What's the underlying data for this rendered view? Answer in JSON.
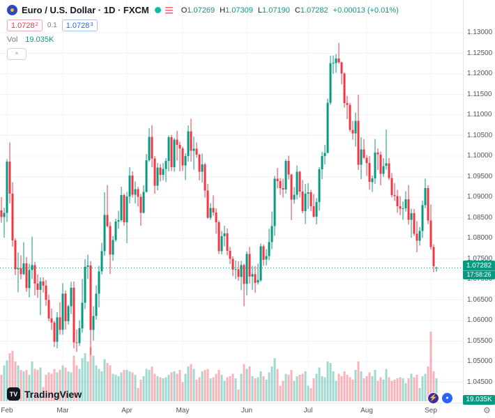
{
  "header": {
    "title": "Euro / U.S. Dollar · 1D · FXCM",
    "ohlc": {
      "o_label": "O",
      "o": "1.07269",
      "h_label": "H",
      "h": "1.07309",
      "l_label": "L",
      "l": "1.07190",
      "c_label": "C",
      "c": "1.07282",
      "change": "+0.00013 (+0.01%)"
    },
    "bid_main": "1.0728",
    "bid_sup": "2",
    "spread": "0.1",
    "ask_main": "1.0728",
    "ask_sup": "3",
    "vol_label": "Vol",
    "vol_value": "19.035K"
  },
  "icons": {
    "collapse_glyph": "^",
    "gear_glyph": "⚙",
    "lightning_glyph": "⚡",
    "chat_glyph": "●",
    "logo_glyph": "TV"
  },
  "price_axis": {
    "labels": [
      "1.13000",
      "1.12500",
      "1.12000",
      "1.11500",
      "1.11000",
      "1.10500",
      "1.10000",
      "1.09500",
      "1.09000",
      "1.08500",
      "1.08000",
      "1.07500",
      "1.07000",
      "1.06500",
      "1.06000",
      "1.05500",
      "1.05000",
      "1.04500"
    ]
  },
  "last_price_tag": {
    "price": "1.07282",
    "countdown": "17:58:26"
  },
  "volume_tag": "19.035K",
  "footer": {
    "brand": "TradingView"
  },
  "colors": {
    "up": "#089981",
    "down": "#f23645",
    "vol_up": "rgba(8,153,129,0.38)",
    "vol_down": "rgba(242,54,69,0.38)",
    "grid": "#f0f3fa",
    "axis_text": "#50535e",
    "accent_blue": "#2962ff"
  },
  "chart_data": {
    "type": "candlestick",
    "title": "Euro / U.S. Dollar",
    "symbol": "EURUSD",
    "interval": "1D",
    "exchange": "FXCM",
    "legend_position": "top-left",
    "grid": true,
    "price_scale": {
      "min": 1.04,
      "max": 1.138,
      "tick": 0.005
    },
    "last": {
      "open": 1.07269,
      "high": 1.07309,
      "low": 1.0719,
      "close": 1.07282,
      "change": 0.00013,
      "change_pct": 0.01,
      "volume_k": 19.035
    },
    "right_gap_bars": 9,
    "columns": [
      "open",
      "high",
      "low",
      "close",
      "volume_k"
    ],
    "months": [
      {
        "label": "Feb",
        "bar": 2
      },
      {
        "label": "Mar",
        "bar": 22
      },
      {
        "label": "Apr",
        "bar": 45
      },
      {
        "label": "May",
        "bar": 65
      },
      {
        "label": "Jun",
        "bar": 88
      },
      {
        "label": "Jul",
        "bar": 110
      },
      {
        "label": "Aug",
        "bar": 131
      },
      {
        "label": "Sep",
        "bar": 154
      }
    ],
    "bars": [
      [
        1.0868,
        1.09,
        1.0838,
        1.0852,
        22
      ],
      [
        1.0852,
        1.0875,
        1.0802,
        1.0862,
        30
      ],
      [
        1.0862,
        1.0993,
        1.084,
        1.0987,
        34
      ],
      [
        1.0987,
        1.1033,
        1.0885,
        1.0909,
        40
      ],
      [
        1.0909,
        1.0937,
        1.078,
        1.0795,
        42
      ],
      [
        1.0795,
        1.08,
        1.071,
        1.0725,
        33
      ],
      [
        1.0725,
        1.0765,
        1.0669,
        1.0727,
        30
      ],
      [
        1.0727,
        1.0759,
        1.07,
        1.0713,
        26
      ],
      [
        1.0713,
        1.0791,
        1.071,
        1.0739,
        25
      ],
      [
        1.0739,
        1.0754,
        1.067,
        1.0679,
        26
      ],
      [
        1.0679,
        1.0738,
        1.0656,
        1.0723,
        22
      ],
      [
        1.0723,
        1.0804,
        1.0701,
        1.0735,
        33
      ],
      [
        1.0735,
        1.0743,
        1.0661,
        1.069,
        27
      ],
      [
        1.069,
        1.0712,
        1.0655,
        1.0675,
        26
      ],
      [
        1.0675,
        1.0705,
        1.0613,
        1.0695,
        28
      ],
      [
        1.0695,
        1.0705,
        1.0668,
        1.0685,
        12
      ],
      [
        1.0685,
        1.0698,
        1.0636,
        1.065,
        22
      ],
      [
        1.065,
        1.0663,
        1.0598,
        1.0605,
        24
      ],
      [
        1.0605,
        1.0629,
        1.0577,
        1.0595,
        23
      ],
      [
        1.0595,
        1.0599,
        1.0536,
        1.0548,
        27
      ],
      [
        1.0548,
        1.062,
        1.0532,
        1.0608,
        24
      ],
      [
        1.0608,
        1.0644,
        1.0565,
        1.0577,
        26
      ],
      [
        1.0577,
        1.0691,
        1.0565,
        1.0665,
        30
      ],
      [
        1.0665,
        1.0673,
        1.0578,
        1.0598,
        28
      ],
      [
        1.0598,
        1.0638,
        1.059,
        1.0635,
        25
      ],
      [
        1.0635,
        1.0694,
        1.0615,
        1.068,
        24
      ],
      [
        1.068,
        1.0695,
        1.0532,
        1.0547,
        38
      ],
      [
        1.0547,
        1.0578,
        1.0524,
        1.0545,
        30
      ],
      [
        1.0545,
        1.0601,
        1.0538,
        1.0581,
        27
      ],
      [
        1.0581,
        1.0701,
        1.057,
        1.0643,
        36
      ],
      [
        1.0643,
        1.0749,
        1.0628,
        1.0731,
        40
      ],
      [
        1.0731,
        1.076,
        1.0701,
        1.0734,
        33
      ],
      [
        1.0734,
        1.0744,
        1.0516,
        1.0577,
        45
      ],
      [
        1.0577,
        1.0635,
        1.0551,
        1.0611,
        38
      ],
      [
        1.0611,
        1.0686,
        1.0602,
        1.0665,
        30
      ],
      [
        1.0665,
        1.0733,
        1.0632,
        1.072,
        27
      ],
      [
        1.072,
        1.0789,
        1.0712,
        1.0769,
        25
      ],
      [
        1.0769,
        1.0912,
        1.0758,
        1.0857,
        35
      ],
      [
        1.0857,
        1.093,
        1.0826,
        1.083,
        32
      ],
      [
        1.083,
        1.084,
        1.0714,
        1.076,
        30
      ],
      [
        1.076,
        1.0805,
        1.0745,
        1.0796,
        23
      ],
      [
        1.0796,
        1.0848,
        1.0792,
        1.0841,
        22
      ],
      [
        1.0841,
        1.0867,
        1.0823,
        1.0844,
        21
      ],
      [
        1.0844,
        1.0926,
        1.084,
        1.0905,
        24
      ],
      [
        1.0905,
        1.0909,
        1.0831,
        1.0839,
        26
      ],
      [
        1.0839,
        1.0913,
        1.0788,
        1.0902,
        26
      ],
      [
        1.0902,
        1.0973,
        1.0885,
        1.0953,
        25
      ],
      [
        1.0953,
        1.0963,
        1.0899,
        1.0906,
        24
      ],
      [
        1.0906,
        1.0938,
        1.0885,
        1.092,
        22
      ],
      [
        1.092,
        1.0926,
        1.0877,
        1.0901,
        11
      ],
      [
        1.0901,
        1.0908,
        1.0831,
        1.0862,
        18
      ],
      [
        1.0862,
        1.0929,
        1.086,
        1.0913,
        21
      ],
      [
        1.0913,
        1.1005,
        1.0911,
        1.099,
        27
      ],
      [
        1.099,
        1.1068,
        1.0987,
        1.1047,
        26
      ],
      [
        1.1047,
        1.1076,
        1.0973,
        1.0994,
        29
      ],
      [
        1.0994,
        1.1,
        1.0909,
        1.0928,
        23
      ],
      [
        1.0928,
        1.0983,
        1.0917,
        1.0972,
        21
      ],
      [
        1.0972,
        1.0981,
        1.0938,
        1.0954,
        20
      ],
      [
        1.0954,
        1.0983,
        1.0941,
        1.0969,
        19
      ],
      [
        1.0969,
        1.0995,
        1.0937,
        1.0988,
        20
      ],
      [
        1.0988,
        1.105,
        1.0963,
        1.1046,
        22
      ],
      [
        1.1046,
        1.1052,
        1.0964,
        1.0973,
        24
      ],
      [
        1.0973,
        1.1044,
        1.0962,
        1.104,
        25
      ],
      [
        1.104,
        1.1062,
        1.0989,
        1.1027,
        23
      ],
      [
        1.1027,
        1.1035,
        1.0963,
        1.1019,
        26
      ],
      [
        1.1019,
        1.1023,
        1.0964,
        1.0977,
        16
      ],
      [
        1.0977,
        1.1007,
        1.0942,
        1.1,
        23
      ],
      [
        1.1,
        1.1075,
        1.0987,
        1.106,
        29
      ],
      [
        1.106,
        1.1091,
        1.0987,
        1.1013,
        31
      ],
      [
        1.1013,
        1.1048,
        1.0967,
        1.1018,
        27
      ],
      [
        1.1018,
        1.1033,
        1.0996,
        1.1004,
        18
      ],
      [
        1.1004,
        1.1006,
        1.0941,
        1.0962,
        20
      ],
      [
        1.0962,
        1.1006,
        1.0936,
        1.098,
        25
      ],
      [
        1.098,
        1.0984,
        1.0899,
        1.0916,
        26
      ],
      [
        1.0916,
        1.0932,
        1.0848,
        1.085,
        27
      ],
      [
        1.085,
        1.0886,
        1.0845,
        1.0874,
        19
      ],
      [
        1.0874,
        1.0904,
        1.0855,
        1.0863,
        20
      ],
      [
        1.0863,
        1.0873,
        1.0811,
        1.0839,
        23
      ],
      [
        1.0839,
        1.0843,
        1.0762,
        1.0769,
        26
      ],
      [
        1.0769,
        1.0818,
        1.076,
        1.0805,
        22
      ],
      [
        1.0805,
        1.0831,
        1.0781,
        1.0812,
        17
      ],
      [
        1.0812,
        1.0824,
        1.0759,
        1.077,
        20
      ],
      [
        1.077,
        1.0779,
        1.0737,
        1.075,
        21
      ],
      [
        1.075,
        1.0756,
        1.0708,
        1.0724,
        23
      ],
      [
        1.0724,
        1.0746,
        1.0701,
        1.0725,
        19
      ],
      [
        1.0725,
        1.0744,
        1.0697,
        1.0706,
        10
      ],
      [
        1.0706,
        1.0745,
        1.0674,
        1.0735,
        23
      ],
      [
        1.0735,
        1.0738,
        1.0635,
        1.0689,
        31
      ],
      [
        1.0689,
        1.0768,
        1.0661,
        1.0762,
        27
      ],
      [
        1.0762,
        1.0779,
        1.069,
        1.0707,
        29
      ],
      [
        1.0707,
        1.0733,
        1.0675,
        1.0713,
        21
      ],
      [
        1.0713,
        1.0732,
        1.0667,
        1.0692,
        19
      ],
      [
        1.0692,
        1.0738,
        1.0687,
        1.0698,
        20
      ],
      [
        1.0698,
        1.0787,
        1.0694,
        1.0781,
        25
      ],
      [
        1.0781,
        1.0785,
        1.0733,
        1.0748,
        21
      ],
      [
        1.0748,
        1.0774,
        1.0734,
        1.0757,
        18
      ],
      [
        1.0757,
        1.0823,
        1.0747,
        1.0791,
        24
      ],
      [
        1.0791,
        1.0865,
        1.0774,
        1.083,
        29
      ],
      [
        1.083,
        1.0952,
        1.0806,
        1.0945,
        36
      ],
      [
        1.0945,
        1.0971,
        1.0921,
        1.0939,
        27
      ],
      [
        1.0939,
        1.0947,
        1.0906,
        1.0922,
        13
      ],
      [
        1.0922,
        1.0945,
        1.0899,
        1.0919,
        17
      ],
      [
        1.0919,
        1.0993,
        1.0909,
        1.0988,
        23
      ],
      [
        1.0988,
        1.1001,
        1.0943,
        1.0955,
        22
      ],
      [
        1.0955,
        1.0957,
        1.0844,
        1.0894,
        26
      ],
      [
        1.0894,
        1.0925,
        1.0884,
        1.0906,
        17
      ],
      [
        1.0906,
        1.0977,
        1.0895,
        1.0962,
        21
      ],
      [
        1.0962,
        1.0965,
        1.0899,
        1.0914,
        22
      ],
      [
        1.0914,
        1.0942,
        1.0861,
        1.0866,
        23
      ],
      [
        1.0866,
        1.0932,
        1.0835,
        1.0909,
        25
      ],
      [
        1.0909,
        1.0934,
        1.0871,
        1.0912,
        13
      ],
      [
        1.0912,
        1.0918,
        1.0866,
        1.0878,
        11
      ],
      [
        1.0878,
        1.0908,
        1.085,
        1.0853,
        19
      ],
      [
        1.0853,
        1.0898,
        1.0834,
        1.0888,
        23
      ],
      [
        1.0888,
        1.0973,
        1.0867,
        1.0968,
        28
      ],
      [
        1.0968,
        1.101,
        1.0944,
        1.1,
        21
      ],
      [
        1.1,
        1.1027,
        1.098,
        1.1008,
        20
      ],
      [
        1.1008,
        1.114,
        1.1007,
        1.113,
        33
      ],
      [
        1.113,
        1.1244,
        1.1125,
        1.1226,
        32
      ],
      [
        1.1226,
        1.1245,
        1.12,
        1.1227,
        25
      ],
      [
        1.1227,
        1.1249,
        1.1203,
        1.1238,
        17
      ],
      [
        1.1238,
        1.1276,
        1.1225,
        1.1228,
        23
      ],
      [
        1.1228,
        1.123,
        1.1175,
        1.1201,
        21
      ],
      [
        1.1201,
        1.1204,
        1.1118,
        1.1129,
        25
      ],
      [
        1.1129,
        1.1147,
        1.109,
        1.1125,
        22
      ],
      [
        1.1125,
        1.113,
        1.1059,
        1.1064,
        20
      ],
      [
        1.1064,
        1.1086,
        1.104,
        1.1055,
        18
      ],
      [
        1.1055,
        1.1106,
        1.1023,
        1.1086,
        26
      ],
      [
        1.1086,
        1.1149,
        1.0966,
        1.0979,
        33
      ],
      [
        1.0979,
        1.1046,
        1.0944,
        1.1016,
        25
      ],
      [
        1.1016,
        1.1042,
        1.0993,
        1.0996,
        19
      ],
      [
        1.0996,
        1.1003,
        1.0952,
        1.0983,
        21
      ],
      [
        1.0983,
        1.1,
        1.0918,
        1.0937,
        24
      ],
      [
        1.0937,
        1.0953,
        1.0913,
        1.0946,
        21
      ],
      [
        1.0946,
        1.1042,
        1.0932,
        1.1009,
        26
      ],
      [
        1.1009,
        1.1019,
        1.0966,
        1.1004,
        17
      ],
      [
        1.1004,
        1.1011,
        1.0929,
        1.0957,
        20
      ],
      [
        1.0957,
        1.0995,
        1.0949,
        1.0976,
        18
      ],
      [
        1.0976,
        1.1065,
        1.0967,
        1.0982,
        27
      ],
      [
        1.0982,
        1.0995,
        1.0942,
        1.0947,
        20
      ],
      [
        1.0947,
        1.0959,
        1.0899,
        1.0905,
        17
      ],
      [
        1.0905,
        1.0934,
        1.0891,
        1.0903,
        18
      ],
      [
        1.0903,
        1.0918,
        1.0862,
        1.0878,
        19
      ],
      [
        1.0878,
        1.0903,
        1.0856,
        1.0872,
        20
      ],
      [
        1.0872,
        1.089,
        1.0845,
        1.0873,
        19
      ],
      [
        1.0873,
        1.0915,
        1.0865,
        1.0895,
        15
      ],
      [
        1.0895,
        1.093,
        1.0833,
        1.0845,
        19
      ],
      [
        1.0845,
        1.0872,
        1.0802,
        1.0861,
        23
      ],
      [
        1.0861,
        1.0871,
        1.0806,
        1.0811,
        20
      ],
      [
        1.0811,
        1.0842,
        1.0766,
        1.0794,
        22
      ],
      [
        1.0794,
        1.0827,
        1.0782,
        1.0818,
        11
      ],
      [
        1.0818,
        1.0892,
        1.0801,
        1.0881,
        21
      ],
      [
        1.0881,
        1.0945,
        1.0873,
        1.0922,
        23
      ],
      [
        1.0922,
        1.0929,
        1.0835,
        1.0843,
        29
      ],
      [
        1.0843,
        1.0882,
        1.0772,
        1.0779,
        58
      ],
      [
        1.0779,
        1.0785,
        1.0718,
        1.0732,
        25
      ],
      [
        1.07269,
        1.07309,
        1.0719,
        1.07282,
        19.035
      ]
    ]
  }
}
